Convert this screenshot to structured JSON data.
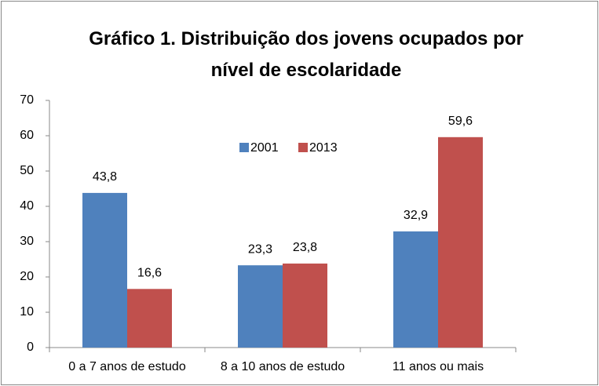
{
  "chart_data": {
    "type": "bar",
    "title": "Gráfico 1. Distribuição dos jovens ocupados  por nível de escolaridade",
    "categories": [
      "0 a 7 anos de estudo",
      "8 a 10 anos de estudo",
      "11 anos ou mais"
    ],
    "series": [
      {
        "name": "2001",
        "color": "#4f81bd",
        "values": [
          43.8,
          23.3,
          32.9
        ],
        "value_labels": [
          "43,8",
          "23,3",
          "32,9"
        ]
      },
      {
        "name": "2013",
        "color": "#c0504d",
        "values": [
          16.6,
          23.8,
          59.6
        ],
        "value_labels": [
          "16,6",
          "23,8",
          "59,6"
        ]
      }
    ],
    "ylim": [
      0,
      70
    ],
    "yticks": [
      0,
      10,
      20,
      30,
      40,
      50,
      60,
      70
    ],
    "grid": false,
    "legend": "top"
  }
}
